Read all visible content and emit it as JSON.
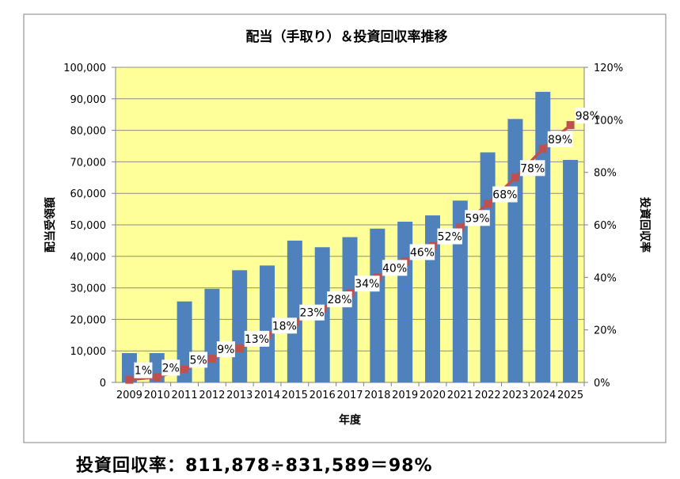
{
  "chart_data": {
    "type": "bar+line",
    "title": "配当（手取り）＆投資回収率推移",
    "xlabel": "年度",
    "ylabel_left": "配当受領額",
    "ylabel_right": "投資回収率",
    "categories": [
      "2009",
      "2010",
      "2011",
      "2012",
      "2013",
      "2014",
      "2015",
      "2016",
      "2017",
      "2018",
      "2019",
      "2020",
      "2021",
      "2022",
      "2023",
      "2024",
      "2025"
    ],
    "series": [
      {
        "name": "配当受領額",
        "kind": "bar",
        "axis": "left",
        "color": "#4f81bd",
        "values": [
          9300,
          9300,
          25700,
          29700,
          35600,
          37100,
          45000,
          42900,
          46100,
          48800,
          51000,
          53000,
          57700,
          73000,
          83600,
          92200,
          70600
        ]
      },
      {
        "name": "投資回収率",
        "kind": "line",
        "axis": "right",
        "color": "#c0504d",
        "values": [
          1,
          2,
          5,
          9,
          13,
          18,
          23,
          28,
          34,
          40,
          46,
          52,
          59,
          68,
          78,
          89,
          98
        ],
        "labels": [
          "1%",
          "2%",
          "5%",
          "9%",
          "13%",
          "18%",
          "23%",
          "28%",
          "34%",
          "40%",
          "46%",
          "52%",
          "59%",
          "68%",
          "78%",
          "89%",
          "98%"
        ]
      }
    ],
    "ylim_left": [
      0,
      100000
    ],
    "yticks_left": [
      "0",
      "10,000",
      "20,000",
      "30,000",
      "40,000",
      "50,000",
      "60,000",
      "70,000",
      "80,000",
      "90,000",
      "100,000"
    ],
    "ylim_right": [
      0,
      120
    ],
    "yticks_right": [
      "0%",
      "20%",
      "40%",
      "60%",
      "80%",
      "100%",
      "120%"
    ],
    "plot_background": "#ffff99",
    "gridlines": "horizontal"
  },
  "footer": {
    "formula": "投資回収率：811,878÷831,589＝98%"
  }
}
